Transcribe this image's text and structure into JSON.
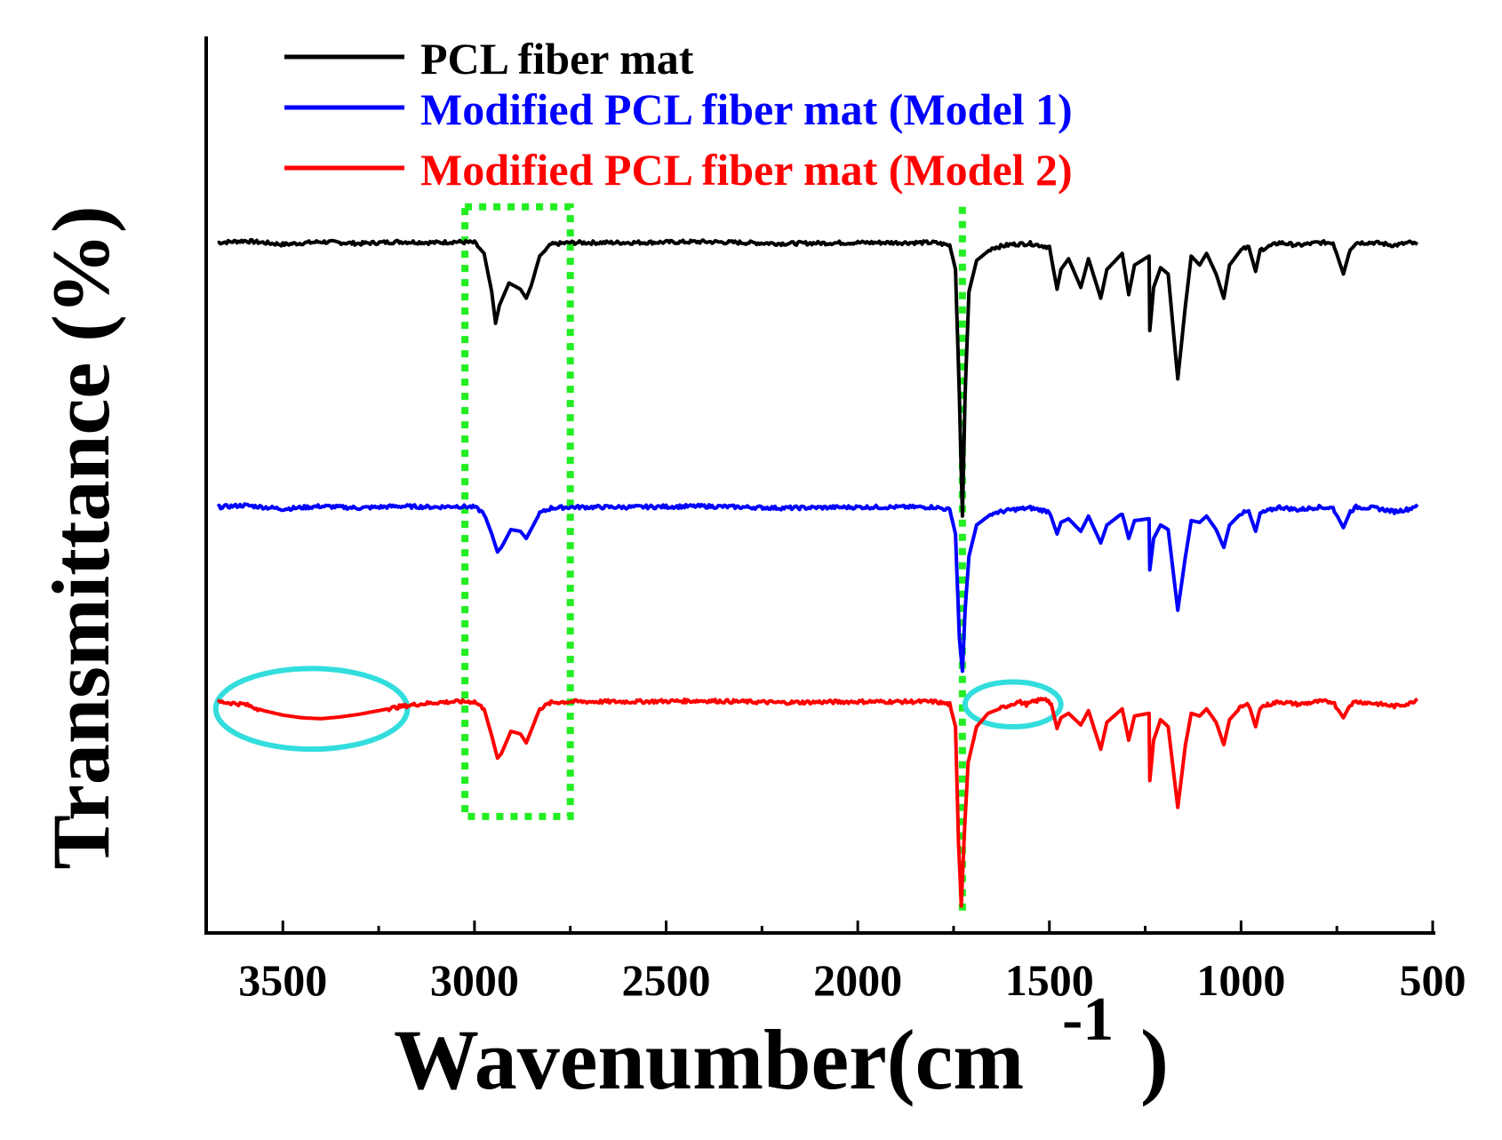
{
  "chart_data": {
    "type": "line",
    "title": "",
    "xlabel": "Wavenumber(cm",
    "xlabel_superscript": "-1",
    "xlabel_close": ")",
    "ylabel": "Transmittance (%)",
    "xlim": [
      3700,
      500
    ],
    "ylim": [
      0,
      1
    ],
    "y_ticks_labeled": false,
    "grid": false,
    "legend_position": "top-left",
    "x_ticks": [
      {
        "value": 3500,
        "label": "3500"
      },
      {
        "value": 3000,
        "label": "3000"
      },
      {
        "value": 2500,
        "label": "2500"
      },
      {
        "value": 2000,
        "label": "2000"
      },
      {
        "value": 1500,
        "label": "1500"
      },
      {
        "value": 1000,
        "label": "1000"
      },
      {
        "value": 500,
        "label": "500"
      }
    ],
    "x_minor_ticks": [
      3250,
      2750,
      2250,
      1750,
      1250,
      750
    ],
    "series": [
      {
        "name": "PCL fiber mat",
        "color": "#000000",
        "baseline": 0.77,
        "points": [
          [
            3670,
            0.77
          ],
          [
            3600,
            0.772
          ],
          [
            3500,
            0.768
          ],
          [
            3400,
            0.771
          ],
          [
            3300,
            0.769
          ],
          [
            3200,
            0.771
          ],
          [
            3100,
            0.77
          ],
          [
            3050,
            0.771
          ],
          [
            3000,
            0.77
          ],
          [
            2975,
            0.758
          ],
          [
            2955,
            0.715
          ],
          [
            2945,
            0.68
          ],
          [
            2935,
            0.7
          ],
          [
            2910,
            0.725
          ],
          [
            2880,
            0.718
          ],
          [
            2865,
            0.708
          ],
          [
            2852,
            0.722
          ],
          [
            2830,
            0.755
          ],
          [
            2800,
            0.768
          ],
          [
            2750,
            0.77
          ],
          [
            2600,
            0.77
          ],
          [
            2400,
            0.771
          ],
          [
            2200,
            0.769
          ],
          [
            2000,
            0.77
          ],
          [
            1800,
            0.77
          ],
          [
            1760,
            0.767
          ],
          [
            1745,
            0.74
          ],
          [
            1735,
            0.6
          ],
          [
            1727,
            0.465
          ],
          [
            1720,
            0.6
          ],
          [
            1710,
            0.715
          ],
          [
            1690,
            0.75
          ],
          [
            1650,
            0.764
          ],
          [
            1600,
            0.768
          ],
          [
            1550,
            0.769
          ],
          [
            1500,
            0.765
          ],
          [
            1480,
            0.718
          ],
          [
            1470,
            0.74
          ],
          [
            1450,
            0.752
          ],
          [
            1418,
            0.72
          ],
          [
            1398,
            0.752
          ],
          [
            1366,
            0.708
          ],
          [
            1350,
            0.74
          ],
          [
            1310,
            0.758
          ],
          [
            1293,
            0.712
          ],
          [
            1278,
            0.745
          ],
          [
            1240,
            0.755
          ],
          [
            1238,
            0.672
          ],
          [
            1228,
            0.72
          ],
          [
            1210,
            0.742
          ],
          [
            1190,
            0.735
          ],
          [
            1165,
            0.618
          ],
          [
            1145,
            0.7
          ],
          [
            1130,
            0.755
          ],
          [
            1108,
            0.745
          ],
          [
            1090,
            0.758
          ],
          [
            1065,
            0.735
          ],
          [
            1045,
            0.708
          ],
          [
            1030,
            0.745
          ],
          [
            1000,
            0.762
          ],
          [
            980,
            0.765
          ],
          [
            962,
            0.738
          ],
          [
            950,
            0.762
          ],
          [
            900,
            0.77
          ],
          [
            850,
            0.767
          ],
          [
            800,
            0.77
          ],
          [
            760,
            0.77
          ],
          [
            733,
            0.735
          ],
          [
            715,
            0.763
          ],
          [
            700,
            0.77
          ],
          [
            650,
            0.77
          ],
          [
            600,
            0.767
          ],
          [
            560,
            0.77
          ],
          [
            540,
            0.768
          ]
        ]
      },
      {
        "name": "Modified PCL fiber mat (Model 1)",
        "color": "#0000ff",
        "baseline": 0.475,
        "points": [
          [
            3670,
            0.475
          ],
          [
            3600,
            0.477
          ],
          [
            3500,
            0.473
          ],
          [
            3400,
            0.476
          ],
          [
            3300,
            0.474
          ],
          [
            3200,
            0.476
          ],
          [
            3100,
            0.475
          ],
          [
            3050,
            0.476
          ],
          [
            3000,
            0.475
          ],
          [
            2975,
            0.468
          ],
          [
            2955,
            0.445
          ],
          [
            2940,
            0.425
          ],
          [
            2930,
            0.43
          ],
          [
            2905,
            0.45
          ],
          [
            2880,
            0.448
          ],
          [
            2865,
            0.44
          ],
          [
            2850,
            0.452
          ],
          [
            2830,
            0.468
          ],
          [
            2800,
            0.474
          ],
          [
            2750,
            0.475
          ],
          [
            2600,
            0.475
          ],
          [
            2400,
            0.476
          ],
          [
            2200,
            0.474
          ],
          [
            2000,
            0.475
          ],
          [
            1800,
            0.475
          ],
          [
            1760,
            0.472
          ],
          [
            1745,
            0.445
          ],
          [
            1735,
            0.33
          ],
          [
            1727,
            0.292
          ],
          [
            1720,
            0.36
          ],
          [
            1710,
            0.42
          ],
          [
            1690,
            0.455
          ],
          [
            1650,
            0.468
          ],
          [
            1600,
            0.472
          ],
          [
            1550,
            0.474
          ],
          [
            1500,
            0.47
          ],
          [
            1480,
            0.445
          ],
          [
            1470,
            0.458
          ],
          [
            1450,
            0.462
          ],
          [
            1418,
            0.448
          ],
          [
            1398,
            0.465
          ],
          [
            1366,
            0.435
          ],
          [
            1350,
            0.455
          ],
          [
            1310,
            0.468
          ],
          [
            1293,
            0.44
          ],
          [
            1278,
            0.46
          ],
          [
            1240,
            0.462
          ],
          [
            1238,
            0.405
          ],
          [
            1228,
            0.44
          ],
          [
            1210,
            0.455
          ],
          [
            1190,
            0.45
          ],
          [
            1165,
            0.36
          ],
          [
            1145,
            0.42
          ],
          [
            1130,
            0.46
          ],
          [
            1108,
            0.458
          ],
          [
            1090,
            0.465
          ],
          [
            1065,
            0.45
          ],
          [
            1045,
            0.43
          ],
          [
            1030,
            0.455
          ],
          [
            1000,
            0.468
          ],
          [
            980,
            0.47
          ],
          [
            962,
            0.448
          ],
          [
            950,
            0.468
          ],
          [
            900,
            0.475
          ],
          [
            850,
            0.472
          ],
          [
            800,
            0.475
          ],
          [
            760,
            0.474
          ],
          [
            733,
            0.452
          ],
          [
            715,
            0.47
          ],
          [
            700,
            0.475
          ],
          [
            650,
            0.474
          ],
          [
            600,
            0.47
          ],
          [
            560,
            0.473
          ],
          [
            540,
            0.478
          ]
        ]
      },
      {
        "name": "Modified PCL fiber mat (Model 2)",
        "color": "#ff0000",
        "baseline": 0.258,
        "points": [
          [
            3670,
            0.258
          ],
          [
            3600,
            0.255
          ],
          [
            3550,
            0.248
          ],
          [
            3500,
            0.243
          ],
          [
            3450,
            0.24
          ],
          [
            3400,
            0.239
          ],
          [
            3350,
            0.241
          ],
          [
            3300,
            0.244
          ],
          [
            3250,
            0.248
          ],
          [
            3200,
            0.252
          ],
          [
            3150,
            0.255
          ],
          [
            3100,
            0.257
          ],
          [
            3050,
            0.258
          ],
          [
            3000,
            0.258
          ],
          [
            2975,
            0.25
          ],
          [
            2955,
            0.22
          ],
          [
            2940,
            0.195
          ],
          [
            2930,
            0.2
          ],
          [
            2905,
            0.225
          ],
          [
            2880,
            0.222
          ],
          [
            2865,
            0.212
          ],
          [
            2850,
            0.228
          ],
          [
            2830,
            0.25
          ],
          [
            2800,
            0.257
          ],
          [
            2750,
            0.258
          ],
          [
            2600,
            0.258
          ],
          [
            2400,
            0.259
          ],
          [
            2200,
            0.257
          ],
          [
            2000,
            0.258
          ],
          [
            1800,
            0.258
          ],
          [
            1760,
            0.255
          ],
          [
            1745,
            0.23
          ],
          [
            1737,
            0.1
          ],
          [
            1730,
            0.03
          ],
          [
            1722,
            0.11
          ],
          [
            1712,
            0.19
          ],
          [
            1690,
            0.23
          ],
          [
            1660,
            0.245
          ],
          [
            1630,
            0.25
          ],
          [
            1600,
            0.255
          ],
          [
            1580,
            0.258
          ],
          [
            1560,
            0.255
          ],
          [
            1540,
            0.258
          ],
          [
            1510,
            0.262
          ],
          [
            1495,
            0.255
          ],
          [
            1480,
            0.228
          ],
          [
            1470,
            0.24
          ],
          [
            1450,
            0.245
          ],
          [
            1418,
            0.232
          ],
          [
            1398,
            0.248
          ],
          [
            1366,
            0.205
          ],
          [
            1350,
            0.235
          ],
          [
            1310,
            0.25
          ],
          [
            1293,
            0.215
          ],
          [
            1278,
            0.242
          ],
          [
            1240,
            0.245
          ],
          [
            1238,
            0.17
          ],
          [
            1228,
            0.215
          ],
          [
            1210,
            0.238
          ],
          [
            1190,
            0.23
          ],
          [
            1165,
            0.14
          ],
          [
            1145,
            0.21
          ],
          [
            1130,
            0.245
          ],
          [
            1108,
            0.242
          ],
          [
            1090,
            0.25
          ],
          [
            1065,
            0.235
          ],
          [
            1045,
            0.21
          ],
          [
            1030,
            0.238
          ],
          [
            1000,
            0.252
          ],
          [
            980,
            0.255
          ],
          [
            962,
            0.23
          ],
          [
            950,
            0.252
          ],
          [
            900,
            0.258
          ],
          [
            850,
            0.255
          ],
          [
            800,
            0.258
          ],
          [
            760,
            0.258
          ],
          [
            733,
            0.24
          ],
          [
            715,
            0.255
          ],
          [
            700,
            0.258
          ],
          [
            650,
            0.256
          ],
          [
            600,
            0.253
          ],
          [
            560,
            0.256
          ],
          [
            540,
            0.261
          ]
        ]
      }
    ],
    "annotations": [
      {
        "kind": "dotted-rectangle",
        "color": "#22ee22",
        "x_range": [
          3025,
          2750
        ],
        "y_range": [
          0.13,
          0.81
        ]
      },
      {
        "kind": "dotted-vertical-line",
        "color": "#22ee22",
        "x": 1727,
        "y_range": [
          0.02,
          0.81
        ]
      },
      {
        "kind": "ellipse",
        "color": "#33dddd",
        "x_range": [
          3675,
          3175
        ],
        "y_range": [
          0.205,
          0.295
        ]
      },
      {
        "kind": "ellipse",
        "color": "#33dddd",
        "x_range": [
          1720,
          1470
        ],
        "y_range": [
          0.23,
          0.28
        ]
      }
    ]
  }
}
